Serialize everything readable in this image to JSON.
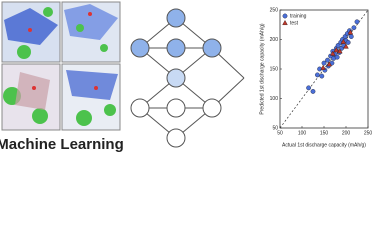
{
  "caption": "Machine Learning",
  "chart_data": {
    "type": "scatter",
    "xlabel": "Actual 1st discharge capacity (mAh/g)",
    "ylabel": "Predicted 1st discharge capacity (mAh/g)",
    "xlim": [
      50,
      250
    ],
    "ylim": [
      50,
      250
    ],
    "xticks": [
      50,
      100,
      150,
      200,
      250
    ],
    "yticks": [
      50,
      100,
      150,
      200,
      250
    ],
    "legend": "upper left",
    "series": [
      {
        "name": "training",
        "color": "#4a6fd8",
        "x": [
          115,
          125,
          135,
          140,
          145,
          150,
          152,
          158,
          160,
          165,
          168,
          170,
          172,
          175,
          178,
          180,
          182,
          185,
          188,
          190,
          192,
          195,
          198,
          200,
          203,
          205,
          208,
          212,
          218,
          225
        ],
        "values": [
          118,
          112,
          140,
          150,
          138,
          160,
          148,
          165,
          155,
          172,
          160,
          180,
          168,
          175,
          185,
          170,
          190,
          178,
          195,
          185,
          200,
          190,
          205,
          198,
          210,
          195,
          215,
          205,
          220,
          230
        ]
      },
      {
        "name": "test",
        "color": "#c0392b",
        "x": [
          148,
          162,
          170,
          178,
          186,
          194,
          200,
          210
        ],
        "values": [
          152,
          158,
          176,
          182,
          180,
          196,
          188,
          212
        ]
      }
    ]
  }
}
